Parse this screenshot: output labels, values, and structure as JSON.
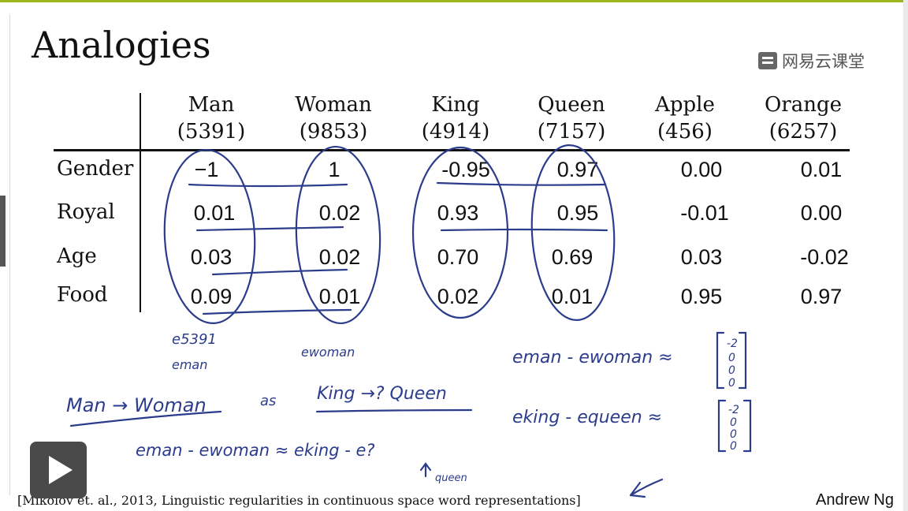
{
  "slide": {
    "title": "Analogies",
    "watermark": "网易云课堂",
    "citation": "[Mikolov et. al., 2013, Linguistic regularities in continuous space word representations]",
    "author": "Andrew Ng"
  },
  "table": {
    "columns": [
      {
        "word": "Man",
        "index": "(5391)"
      },
      {
        "word": "Woman",
        "index": "(9853)"
      },
      {
        "word": "King",
        "index": "(4914)"
      },
      {
        "word": "Queen",
        "index": "(7157)"
      },
      {
        "word": "Apple",
        "index": "(456)"
      },
      {
        "word": "Orange",
        "index": "(6257)"
      }
    ],
    "rows": [
      {
        "label": "Gender",
        "values": [
          "−1",
          "1",
          "-0.95",
          "0.97",
          "0.00",
          "0.01"
        ]
      },
      {
        "label": "Royal",
        "values": [
          "0.01",
          "0.02",
          "0.93",
          "0.95",
          "-0.01",
          "0.00"
        ]
      },
      {
        "label": "Age",
        "values": [
          "0.03",
          "0.02",
          "0.70",
          "0.69",
          "0.03",
          "-0.02"
        ]
      },
      {
        "label": "Food",
        "values": [
          "0.09",
          "0.01",
          "0.02",
          "0.01",
          "0.95",
          "0.97"
        ]
      }
    ]
  },
  "handwriting": {
    "e5391": "e5391",
    "eman": "eman",
    "ewoman": "ewoman",
    "analogy_left": "Man → Woman",
    "analogy_as": "as",
    "analogy_right": "King →? Queen",
    "eq1": "eman - ewoman ≈",
    "eq2": "eking - equeen ≈",
    "eq3": "eman - ewoman ≈ eking - e?",
    "queen_note": "queen",
    "vec1": [
      "-2",
      "0",
      "0",
      "0"
    ],
    "vec2": [
      "-2",
      "0",
      "0",
      "0"
    ]
  },
  "colors": {
    "ink": "#2c3c8c",
    "accent_bar": "#9fb61e",
    "text": "#111111"
  },
  "controls": {
    "play_icon": "play-icon"
  }
}
